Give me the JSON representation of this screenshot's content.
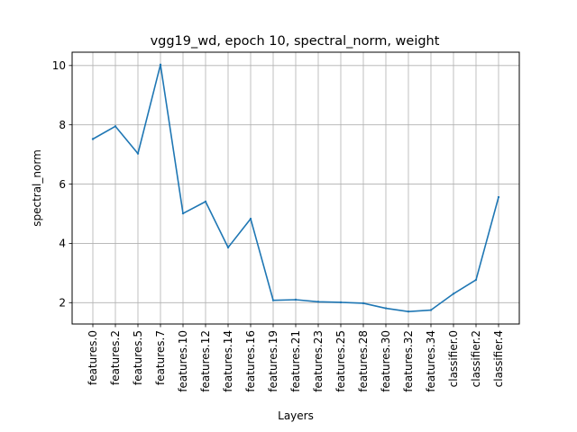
{
  "chart_data": {
    "type": "line",
    "title": "vgg19_wd, epoch 10, spectral_norm, weight",
    "xlabel": "Layers",
    "ylabel": "spectral_norm",
    "categories": [
      "features.0",
      "features.2",
      "features.5",
      "features.7",
      "features.10",
      "features.12",
      "features.14",
      "features.16",
      "features.19",
      "features.21",
      "features.23",
      "features.25",
      "features.28",
      "features.30",
      "features.32",
      "features.34",
      "classifier.0",
      "classifier.2",
      "classifier.4"
    ],
    "series": [
      {
        "name": "weight",
        "color": "#1f77b4",
        "values": [
          7.52,
          7.95,
          7.03,
          10.03,
          5.01,
          5.41,
          3.86,
          4.83,
          2.08,
          2.1,
          2.03,
          2.01,
          1.98,
          1.81,
          1.7,
          1.75,
          2.3,
          2.77,
          5.56
        ]
      }
    ],
    "yticks": [
      2,
      4,
      6,
      8,
      10
    ],
    "ylim": [
      1.28,
      10.45
    ],
    "grid": true
  }
}
